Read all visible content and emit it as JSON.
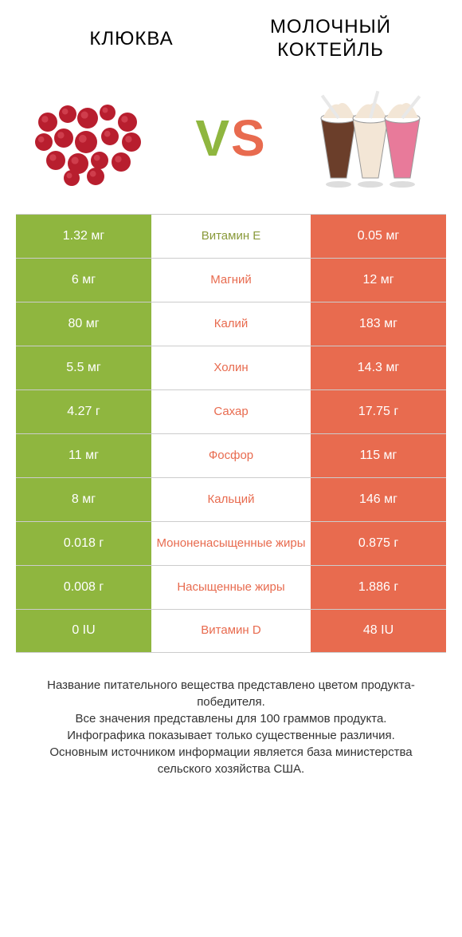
{
  "colors": {
    "green": "#8fb63f",
    "orange": "#e86b4f",
    "olive": "#8a9a3b",
    "text": "#666666",
    "border": "#cccccc",
    "white": "#ffffff",
    "cranberry_red": "#b81e2e",
    "cranberry_dark": "#7a1420",
    "shake_brown": "#6b3e2a",
    "shake_cream": "#f3e6d6",
    "shake_pink": "#e87a9a",
    "straw": "#e8e8e8"
  },
  "header": {
    "left_title": "КЛЮКВА",
    "right_title": "МОЛОЧНЫЙ\nКОКТЕЙЛЬ",
    "vs_v": "V",
    "vs_s": "S"
  },
  "table": {
    "type": "comparison-table",
    "left_color": "#8fb63f",
    "right_color": "#e86b4f",
    "rows": [
      {
        "left": "1.32 мг",
        "mid": "Витамин E",
        "right": "0.05 мг",
        "winner": "left"
      },
      {
        "left": "6 мг",
        "mid": "Магний",
        "right": "12 мг",
        "winner": "right"
      },
      {
        "left": "80 мг",
        "mid": "Калий",
        "right": "183 мг",
        "winner": "right"
      },
      {
        "left": "5.5 мг",
        "mid": "Холин",
        "right": "14.3 мг",
        "winner": "right"
      },
      {
        "left": "4.27 г",
        "mid": "Сахар",
        "right": "17.75 г",
        "winner": "right"
      },
      {
        "left": "11 мг",
        "mid": "Фосфор",
        "right": "115 мг",
        "winner": "right"
      },
      {
        "left": "8 мг",
        "mid": "Кальций",
        "right": "146 мг",
        "winner": "right"
      },
      {
        "left": "0.018 г",
        "mid": "Мононенасыщенные жиры",
        "right": "0.875 г",
        "winner": "right"
      },
      {
        "left": "0.008 г",
        "mid": "Насыщенные жиры",
        "right": "1.886 г",
        "winner": "right"
      },
      {
        "left": "0 IU",
        "mid": "Витамин D",
        "right": "48 IU",
        "winner": "right"
      }
    ]
  },
  "footer": {
    "line1": "Название питательного вещества представлено цветом продукта-победителя.",
    "line2": "Все значения представлены для 100 граммов продукта.",
    "line3": "Инфографика показывает только существенные различия.",
    "line4": "Основным источником информации является база министерства сельского хозяйства США."
  }
}
